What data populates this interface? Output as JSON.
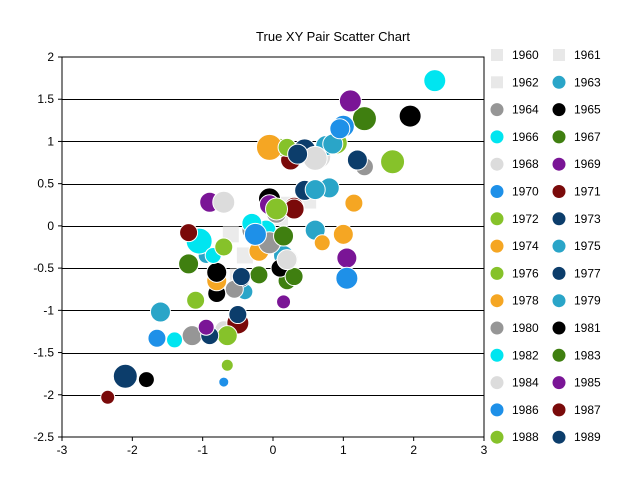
{
  "chart_data": {
    "type": "scatter",
    "title": "True XY Pair Scatter Chart",
    "xlabel": "",
    "ylabel": "",
    "xlim": [
      -3,
      3
    ],
    "ylim": [
      -2.5,
      2
    ],
    "xticks": [
      -3,
      -2,
      -1,
      0,
      1,
      2,
      3
    ],
    "yticks": [
      -2.5,
      -2,
      -1.5,
      -1,
      -0.5,
      0,
      0.5,
      1,
      1.5,
      2
    ],
    "grid": "horizontal",
    "legend_position": "right",
    "series": [
      {
        "name": "1960",
        "color": "#e8e8e8",
        "marker": "square",
        "points": [
          {
            "x": -0.6,
            "y": -0.1,
            "s": 8
          },
          {
            "x": -0.4,
            "y": -0.35,
            "s": 8
          }
        ]
      },
      {
        "name": "1961",
        "color": "#e8e8e8",
        "marker": "square",
        "points": [
          {
            "x": 0.2,
            "y": 0.25,
            "s": 8
          },
          {
            "x": 0.5,
            "y": 0.3,
            "s": 8
          }
        ]
      },
      {
        "name": "1962",
        "color": "#e8e8e8",
        "marker": "square",
        "points": [
          {
            "x": -0.5,
            "y": -0.6,
            "s": 8
          },
          {
            "x": 0.1,
            "y": 0.1,
            "s": 8
          }
        ]
      },
      {
        "name": "1963",
        "color": "#2aa5c8",
        "points": [
          {
            "x": -1.6,
            "y": -1.02,
            "s": 10
          },
          {
            "x": 0.6,
            "y": -0.05,
            "s": 10
          },
          {
            "x": 0.8,
            "y": 0.45,
            "s": 10
          }
        ]
      },
      {
        "name": "1964",
        "color": "#969696",
        "points": [
          {
            "x": -1.15,
            "y": -1.3,
            "s": 10
          },
          {
            "x": -0.3,
            "y": -0.05,
            "s": 10
          },
          {
            "x": 1.3,
            "y": 0.7,
            "s": 9
          }
        ]
      },
      {
        "name": "1965",
        "color": "#000000",
        "points": [
          {
            "x": -1.8,
            "y": -1.82,
            "s": 8
          },
          {
            "x": -0.8,
            "y": -0.8,
            "s": 9
          },
          {
            "x": 1.95,
            "y": 1.3,
            "s": 11
          }
        ]
      },
      {
        "name": "1966",
        "color": "#00e5f0",
        "points": [
          {
            "x": -1.4,
            "y": -1.35,
            "s": 8
          },
          {
            "x": -0.1,
            "y": -0.05,
            "s": 10
          },
          {
            "x": 2.3,
            "y": 1.72,
            "s": 11
          }
        ]
      },
      {
        "name": "1967",
        "color": "#3f7f10",
        "points": [
          {
            "x": -1.2,
            "y": -0.45,
            "s": 10
          },
          {
            "x": 0.2,
            "y": -0.65,
            "s": 9
          },
          {
            "x": 1.3,
            "y": 1.27,
            "s": 12
          }
        ]
      },
      {
        "name": "1968",
        "color": "#dcdcdc",
        "points": [
          {
            "x": -0.7,
            "y": -1.23,
            "s": 9
          },
          {
            "x": 0.2,
            "y": -0.4,
            "s": 11
          },
          {
            "x": 0.65,
            "y": 0.82,
            "s": 12
          }
        ]
      },
      {
        "name": "1969",
        "color": "#7a1596",
        "points": [
          {
            "x": -0.9,
            "y": 0.28,
            "s": 10
          },
          {
            "x": 0.15,
            "y": -0.9,
            "s": 7
          },
          {
            "x": 1.1,
            "y": 1.48,
            "s": 11
          }
        ]
      },
      {
        "name": "1970",
        "color": "#1e90e8",
        "points": [
          {
            "x": -0.7,
            "y": -1.85,
            "s": 5
          },
          {
            "x": -1.65,
            "y": -1.33,
            "s": 9
          },
          {
            "x": 1.0,
            "y": 1.18,
            "s": 11
          }
        ]
      },
      {
        "name": "1971",
        "color": "#7a0a0a",
        "points": [
          {
            "x": -0.5,
            "y": -1.15,
            "s": 11
          },
          {
            "x": 0.25,
            "y": 0.78,
            "s": 10
          },
          {
            "x": 0.3,
            "y": 0.22,
            "s": 10
          }
        ]
      },
      {
        "name": "1972",
        "color": "#86c22a",
        "points": [
          {
            "x": -0.65,
            "y": -1.3,
            "s": 10
          },
          {
            "x": 0.1,
            "y": 0.93,
            "s": 9
          },
          {
            "x": 0.9,
            "y": 0.98,
            "s": 11
          }
        ]
      },
      {
        "name": "1973",
        "color": "#0c3d6b",
        "points": [
          {
            "x": -0.9,
            "y": -1.3,
            "s": 9
          },
          {
            "x": 0.45,
            "y": 0.42,
            "s": 10
          },
          {
            "x": 1.2,
            "y": 0.78,
            "s": 10
          }
        ]
      },
      {
        "name": "1974",
        "color": "#f5a623",
        "points": [
          {
            "x": -0.2,
            "y": -0.3,
            "s": 10
          },
          {
            "x": 0.7,
            "y": -0.2,
            "s": 8
          },
          {
            "x": -0.05,
            "y": 0.93,
            "s": 13
          }
        ]
      },
      {
        "name": "1975",
        "color": "#2aa5c8",
        "points": [
          {
            "x": -0.4,
            "y": -0.78,
            "s": 8
          },
          {
            "x": 0.75,
            "y": 0.95,
            "s": 10
          },
          {
            "x": 0.6,
            "y": 0.43,
            "s": 10
          }
        ]
      },
      {
        "name": "1976",
        "color": "#86c22a",
        "points": [
          {
            "x": -0.65,
            "y": -1.65,
            "s": 6
          },
          {
            "x": -1.1,
            "y": -0.88,
            "s": 9
          },
          {
            "x": 1.7,
            "y": 0.76,
            "s": 12
          }
        ]
      },
      {
        "name": "1977",
        "color": "#0c3d6b",
        "points": [
          {
            "x": -2.1,
            "y": -1.78,
            "s": 12
          },
          {
            "x": -0.45,
            "y": -0.62,
            "s": 9
          },
          {
            "x": 0.45,
            "y": 0.9,
            "s": 11
          }
        ]
      },
      {
        "name": "1978",
        "color": "#f5a623",
        "points": [
          {
            "x": -0.8,
            "y": -0.65,
            "s": 10
          },
          {
            "x": 1.0,
            "y": -0.1,
            "s": 10
          },
          {
            "x": 1.15,
            "y": 0.27,
            "s": 9
          }
        ]
      },
      {
        "name": "1979",
        "color": "#2aa5c8",
        "points": [
          {
            "x": 0.15,
            "y": -0.35,
            "s": 10
          },
          {
            "x": -0.95,
            "y": -0.35,
            "s": 8
          },
          {
            "x": 0.85,
            "y": 0.97,
            "s": 10
          }
        ]
      },
      {
        "name": "1980",
        "color": "#969696",
        "points": [
          {
            "x": -0.55,
            "y": -0.75,
            "s": 9
          },
          {
            "x": -0.05,
            "y": -0.2,
            "s": 11
          },
          {
            "x": 0.05,
            "y": 0.15,
            "s": 10
          }
        ]
      },
      {
        "name": "1981",
        "color": "#000000",
        "points": [
          {
            "x": -0.8,
            "y": -0.55,
            "s": 10
          },
          {
            "x": 0.1,
            "y": -0.5,
            "s": 9
          },
          {
            "x": -0.05,
            "y": 0.32,
            "s": 11
          }
        ]
      },
      {
        "name": "1982",
        "color": "#00e5f0",
        "points": [
          {
            "x": -1.05,
            "y": -0.18,
            "s": 13
          },
          {
            "x": -0.85,
            "y": -0.35,
            "s": 8
          },
          {
            "x": -0.3,
            "y": 0.03,
            "s": 10
          }
        ]
      },
      {
        "name": "1983",
        "color": "#3f7f10",
        "points": [
          {
            "x": -0.2,
            "y": -0.58,
            "s": 9
          },
          {
            "x": 0.3,
            "y": -0.6,
            "s": 9
          },
          {
            "x": 0.15,
            "y": -0.12,
            "s": 10
          }
        ]
      },
      {
        "name": "1984",
        "color": "#dcdcdc",
        "points": [
          {
            "x": -0.7,
            "y": 0.28,
            "s": 11
          },
          {
            "x": 0.2,
            "y": -0.4,
            "s": 10
          },
          {
            "x": 0.6,
            "y": 0.8,
            "s": 12
          }
        ]
      },
      {
        "name": "1985",
        "color": "#7a1596",
        "points": [
          {
            "x": -0.95,
            "y": -1.2,
            "s": 8
          },
          {
            "x": -0.05,
            "y": 0.25,
            "s": 10
          },
          {
            "x": 1.05,
            "y": -0.38,
            "s": 10
          }
        ]
      },
      {
        "name": "1986",
        "color": "#1e90e8",
        "points": [
          {
            "x": -0.25,
            "y": -0.1,
            "s": 11
          },
          {
            "x": 1.05,
            "y": -0.62,
            "s": 11
          },
          {
            "x": 0.95,
            "y": 1.15,
            "s": 10
          }
        ]
      },
      {
        "name": "1987",
        "color": "#7a0a0a",
        "points": [
          {
            "x": -2.35,
            "y": -2.03,
            "s": 7
          },
          {
            "x": -1.2,
            "y": -0.08,
            "s": 9
          },
          {
            "x": 0.3,
            "y": 0.2,
            "s": 10
          }
        ]
      },
      {
        "name": "1988",
        "color": "#86c22a",
        "points": [
          {
            "x": -0.7,
            "y": -0.25,
            "s": 9
          },
          {
            "x": 0.05,
            "y": 0.2,
            "s": 11
          },
          {
            "x": 0.2,
            "y": 0.93,
            "s": 9
          }
        ]
      },
      {
        "name": "1989",
        "color": "#0c3d6b",
        "points": [
          {
            "x": -0.5,
            "y": -1.05,
            "s": 9
          },
          {
            "x": -0.45,
            "y": -0.6,
            "s": 9
          },
          {
            "x": 0.35,
            "y": 0.85,
            "s": 10
          }
        ]
      }
    ]
  }
}
